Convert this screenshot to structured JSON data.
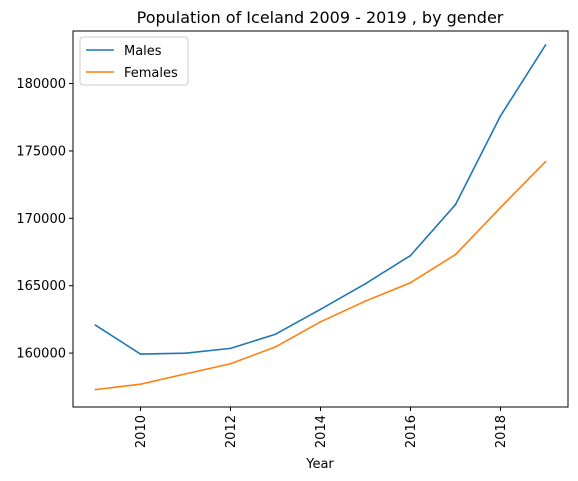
{
  "chart_data": {
    "type": "line",
    "title": "Population of Iceland 2009 - 2019 , by gender",
    "xlabel": "Year",
    "ylabel": "",
    "x": [
      2009,
      2010,
      2011,
      2012,
      2013,
      2014,
      2015,
      2016,
      2017,
      2018,
      2019
    ],
    "series": [
      {
        "name": "Males",
        "color": "#1f77b4",
        "values": [
          162070,
          159930,
          159990,
          160350,
          161400,
          163250,
          165150,
          167240,
          171020,
          177600,
          182860
        ]
      },
      {
        "name": "Females",
        "color": "#ff7f0e",
        "values": [
          157290,
          157690,
          158460,
          159210,
          160460,
          162320,
          163860,
          165220,
          167310,
          170800,
          174200
        ]
      }
    ],
    "xlim": [
      2008.5,
      2019.5
    ],
    "ylim": [
      156000,
      183900
    ],
    "xticks": [
      2010,
      2012,
      2014,
      2016,
      2018
    ],
    "yticks": [
      160000,
      165000,
      170000,
      175000,
      180000
    ],
    "xtick_rotation": "vertical",
    "grid": false,
    "legend": "top-left"
  }
}
